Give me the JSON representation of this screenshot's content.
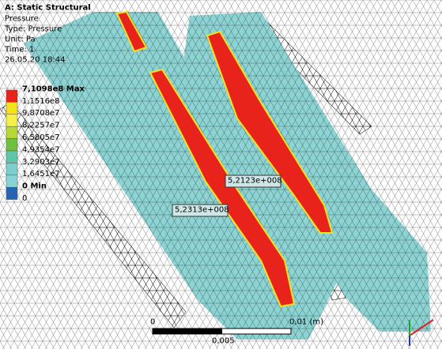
{
  "header": {
    "title": "A: Static Structural",
    "lines": [
      "Pressure",
      "Type: Pressure",
      "Unit: Pa",
      "Time: 1",
      "26.05.20 18:44"
    ]
  },
  "legend": {
    "labels": [
      "7,1098e8 Max",
      "1,1516e8",
      "9,8708e7",
      "8,2257e7",
      "6,5805e7",
      "4,9354e7",
      "3,2903e7",
      "1,6451e7",
      "0 Min",
      "0"
    ],
    "colors": [
      "#e8231b",
      "#f3e21c",
      "#f5ef4a",
      "#b7d935",
      "#6cc23c",
      "#5ec6a8",
      "#7ccfcf",
      "#86d4d4",
      "#2563b3"
    ]
  },
  "probes": [
    "5,2123e+008",
    "5,2313e+008"
  ],
  "scale": {
    "start": "0",
    "end": "0,01 (m)",
    "mid": "0,005"
  }
}
